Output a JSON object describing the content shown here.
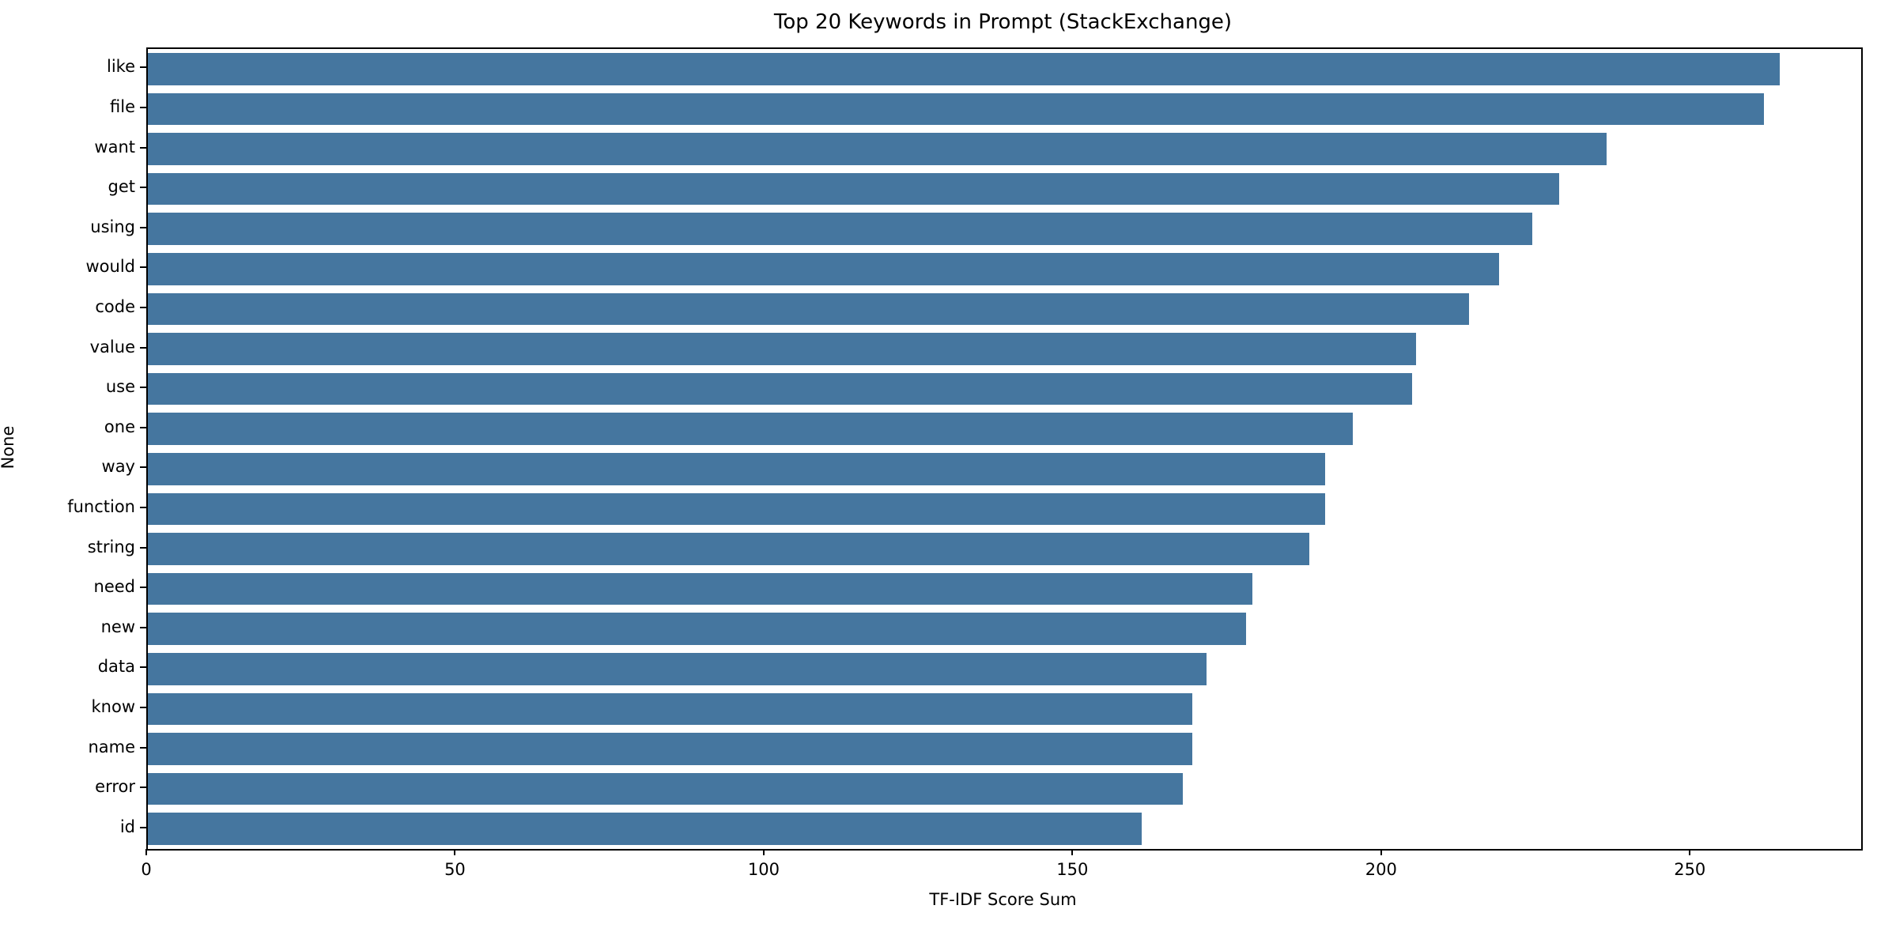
{
  "figure": {
    "title": "Top 20 Keywords in Prompt (StackExchange)",
    "xlabel": "TF-IDF Score Sum",
    "ylabel": "None"
  },
  "chart_data": {
    "type": "bar",
    "orientation": "horizontal",
    "title": "Top 20 Keywords in Prompt (StackExchange)",
    "xlabel": "TF-IDF Score Sum",
    "ylabel": "None",
    "categories": [
      "like",
      "file",
      "want",
      "get",
      "using",
      "would",
      "code",
      "value",
      "use",
      "one",
      "way",
      "function",
      "string",
      "need",
      "new",
      "data",
      "know",
      "name",
      "error",
      "id"
    ],
    "values": [
      264.3,
      261.8,
      236.3,
      228.6,
      224.2,
      218.9,
      214.0,
      205.4,
      204.8,
      195.2,
      190.7,
      190.7,
      188.1,
      178.9,
      177.9,
      171.5,
      169.2,
      169.2,
      167.6,
      161.0
    ],
    "xlim": [
      0,
      277.5
    ],
    "xticks": [
      0,
      50,
      100,
      150,
      200,
      250
    ],
    "bar_color": "#45769f",
    "bar_width_fraction": 0.8,
    "grid": false,
    "legend": null,
    "spine_color": "#000000",
    "background_color": "#ffffff"
  }
}
